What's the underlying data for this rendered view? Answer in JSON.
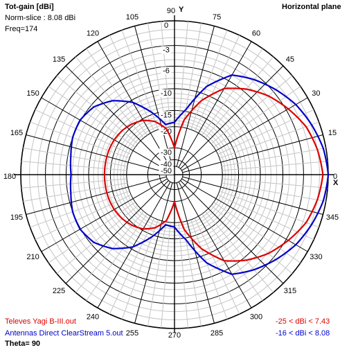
{
  "header": {
    "quantity": "Tot-gain [dBi]",
    "norm": "Norm-slice : 8.08 dBi",
    "freq": "Freq=174",
    "plane": "Horizontal plane",
    "y_axis": "Y",
    "x_axis": "X"
  },
  "footer": {
    "theta": "Theta= 90"
  },
  "chart_data": {
    "type": "polar",
    "title": "Horizontal plane",
    "quantity": "Tot-gain [dBi]",
    "angle_ticks": [
      "0",
      "15",
      "30",
      "45",
      "60",
      "75",
      "90",
      "105",
      "120",
      "135",
      "150",
      "165",
      "180",
      "195",
      "210",
      "225",
      "240",
      "255",
      "270",
      "285",
      "300",
      "315",
      "330",
      "345"
    ],
    "radial_ticks": [
      "0",
      "-3",
      "-6",
      "-10",
      "-15",
      "-20",
      "-30",
      "-40",
      "-50"
    ],
    "radial_tick_values": [
      0,
      -3,
      -6,
      -10,
      -15,
      -20,
      -30,
      -40,
      -50
    ],
    "grid": true,
    "series": [
      {
        "name": "Televes Yagi B-III.out",
        "range_label": "-25 < dBi < 7.43",
        "color": "#dd0000",
        "angles_deg": [
          0,
          10,
          20,
          30,
          40,
          50,
          60,
          70,
          80,
          90,
          100,
          110,
          120,
          130,
          140,
          150,
          160,
          170,
          180
        ],
        "gain_db": [
          -0.6,
          -1.0,
          -1.6,
          -2.7,
          -3.9,
          -5.5,
          -7.5,
          -11.5,
          -17.5,
          -30,
          -20.5,
          -17.2,
          -15.4,
          -14.5,
          -13.9,
          -13.6,
          -13.5,
          -13.5,
          -13.5
        ]
      },
      {
        "name": "Antennas Direct ClearStream 5.out",
        "range_label": "-16 < dBi < 8.08",
        "color": "#0000cc",
        "angles_deg": [
          0,
          10,
          20,
          30,
          40,
          50,
          60,
          70,
          80,
          90,
          100,
          110,
          120,
          130,
          140,
          150,
          160,
          170,
          180
        ],
        "gain_db": [
          0,
          -0.3,
          -0.9,
          -1.6,
          -2.6,
          -3.7,
          -5.0,
          -8.5,
          -14.5,
          -18.5,
          -19.0,
          -14.5,
          -10.5,
          -8.0,
          -6.5,
          -5.9,
          -6.0,
          -6.5,
          -6.8
        ]
      }
    ]
  }
}
